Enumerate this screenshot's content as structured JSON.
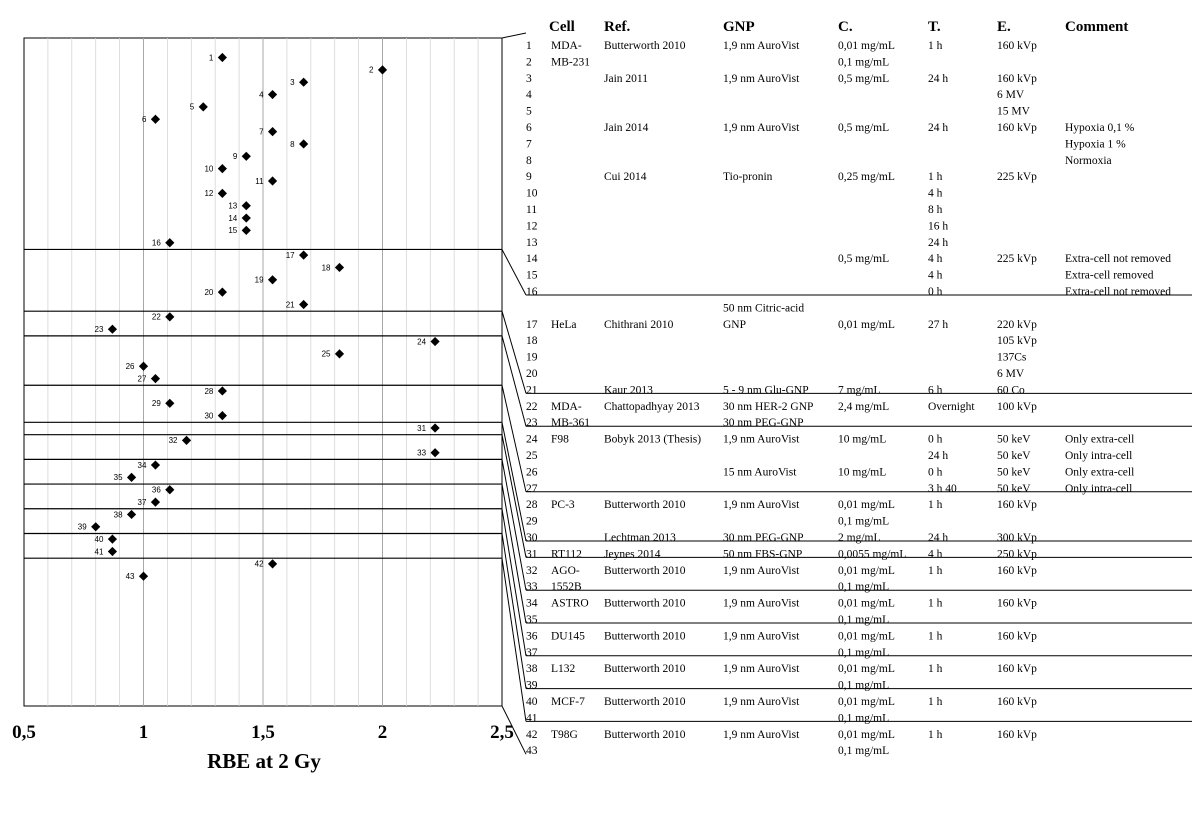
{
  "chart_data": {
    "type": "scatter",
    "xlabel": "RBE at 2 Gy",
    "xlim": [
      0.5,
      2.5
    ],
    "x_tick_labels": [
      "0,5",
      "1",
      "1,5",
      "2",
      "2,5"
    ],
    "marker": "diamond",
    "points": [
      {
        "id": "1",
        "x": 1.33
      },
      {
        "id": "2",
        "x": 2.0
      },
      {
        "id": "3",
        "x": 1.67
      },
      {
        "id": "4",
        "x": 1.54
      },
      {
        "id": "5",
        "x": 1.25
      },
      {
        "id": "6",
        "x": 1.05
      },
      {
        "id": "7",
        "x": 1.54
      },
      {
        "id": "8",
        "x": 1.67
      },
      {
        "id": "9",
        "x": 1.43
      },
      {
        "id": "10",
        "x": 1.33
      },
      {
        "id": "11",
        "x": 1.54
      },
      {
        "id": "12",
        "x": 1.33
      },
      {
        "id": "13",
        "x": 1.43
      },
      {
        "id": "14",
        "x": 1.43
      },
      {
        "id": "15",
        "x": 1.43
      },
      {
        "id": "16",
        "x": 1.11
      },
      {
        "id": "17",
        "x": 1.67
      },
      {
        "id": "18",
        "x": 1.82
      },
      {
        "id": "19",
        "x": 1.54
      },
      {
        "id": "20",
        "x": 1.33
      },
      {
        "id": "21",
        "x": 1.67
      },
      {
        "id": "22",
        "x": 1.11
      },
      {
        "id": "23",
        "x": 0.87
      },
      {
        "id": "24",
        "x": 2.22
      },
      {
        "id": "25",
        "x": 1.82
      },
      {
        "id": "26",
        "x": 1.0
      },
      {
        "id": "27",
        "x": 1.05
      },
      {
        "id": "28",
        "x": 1.33
      },
      {
        "id": "29",
        "x": 1.11
      },
      {
        "id": "30",
        "x": 1.33
      },
      {
        "id": "31",
        "x": 2.22
      },
      {
        "id": "32",
        "x": 1.18
      },
      {
        "id": "33",
        "x": 2.22
      },
      {
        "id": "34",
        "x": 1.05
      },
      {
        "id": "35",
        "x": 0.95
      },
      {
        "id": "36",
        "x": 1.11
      },
      {
        "id": "37",
        "x": 1.05
      },
      {
        "id": "38",
        "x": 0.95
      },
      {
        "id": "39",
        "x": 0.8
      },
      {
        "id": "40",
        "x": 0.87
      },
      {
        "id": "41",
        "x": 0.87
      },
      {
        "id": "42",
        "x": 1.54
      },
      {
        "id": "43",
        "x": 1.0
      }
    ],
    "groups": [
      {
        "first": 1,
        "last": 16
      },
      {
        "first": 17,
        "last": 21
      },
      {
        "first": 22,
        "last": 23
      },
      {
        "first": 24,
        "last": 27
      },
      {
        "first": 28,
        "last": 30
      },
      {
        "first": 31,
        "last": 31
      },
      {
        "first": 32,
        "last": 33
      },
      {
        "first": 34,
        "last": 35
      },
      {
        "first": 36,
        "last": 37
      },
      {
        "first": 38,
        "last": 39
      },
      {
        "first": 40,
        "last": 41
      },
      {
        "first": 42,
        "last": 43
      }
    ]
  },
  "table": {
    "columns": [
      "Cell",
      "Ref.",
      "GNP",
      "C.",
      "T.",
      "E.",
      "Comment"
    ],
    "rows": [
      [
        "1",
        "MDA-",
        "Butterworth 2010",
        "1,9 nm AuroVist",
        "0,01 mg/mL",
        "1 h",
        "160 kVp",
        ""
      ],
      [
        "2",
        "MB-231",
        "",
        "",
        "0,1 mg/mL",
        "",
        "",
        ""
      ],
      [
        "3",
        "",
        "Jain 2011",
        "1,9 nm AuroVist",
        "0,5 mg/mL",
        "24 h",
        "160 kVp",
        ""
      ],
      [
        "4",
        "",
        "",
        "",
        "",
        "",
        "6 MV",
        ""
      ],
      [
        "5",
        "",
        "",
        "",
        "",
        "",
        "15 MV",
        ""
      ],
      [
        "6",
        "",
        "Jain 2014",
        "1,9 nm AuroVist",
        "0,5 mg/mL",
        "24 h",
        "160 kVp",
        "Hypoxia 0,1 %"
      ],
      [
        "7",
        "",
        "",
        "",
        "",
        "",
        "",
        "Hypoxia 1 %"
      ],
      [
        "8",
        "",
        "",
        "",
        "",
        "",
        "",
        "Normoxia"
      ],
      [
        "9",
        "",
        "Cui 2014",
        "Tio-pronin",
        "0,25 mg/mL",
        "1 h",
        "225 kVp",
        ""
      ],
      [
        "10",
        "",
        "",
        "",
        "",
        "4 h",
        "",
        ""
      ],
      [
        "11",
        "",
        "",
        "",
        "",
        "8 h",
        "",
        ""
      ],
      [
        "12",
        "",
        "",
        "",
        "",
        "16 h",
        "",
        ""
      ],
      [
        "13",
        "",
        "",
        "",
        "",
        "24 h",
        "",
        ""
      ],
      [
        "14",
        "",
        "",
        "",
        "0,5 mg/mL",
        "4 h",
        "225 kVp",
        "Extra-cell not removed"
      ],
      [
        "15",
        "",
        "",
        "",
        "",
        "4 h",
        "",
        "Extra-cell removed"
      ],
      [
        "16",
        "",
        "",
        "",
        "",
        "0 h",
        "",
        "Extra-cell not removed"
      ],
      [
        "",
        "",
        "",
        "50 nm Citric-acid",
        "",
        "",
        "",
        ""
      ],
      [
        "17",
        "HeLa",
        "Chithrani 2010",
        "GNP",
        "0,01 mg/mL",
        "27 h",
        "220 kVp",
        ""
      ],
      [
        "18",
        "",
        "",
        "",
        "",
        "",
        "105 kVp",
        ""
      ],
      [
        "19",
        "",
        "",
        "",
        "",
        "",
        "137Cs",
        ""
      ],
      [
        "20",
        "",
        "",
        "",
        "",
        "",
        "6 MV",
        ""
      ],
      [
        "21",
        "",
        "Kaur 2013",
        "5 - 9 nm Glu-GNP",
        "7  mg/mL",
        "6 h",
        "60 Co",
        ""
      ],
      [
        "22",
        "MDA-",
        "Chattopadhyay 2013",
        "30 nm HER-2 GNP",
        "2,4 mg/mL",
        "Overnight",
        "100 kVp",
        ""
      ],
      [
        "23",
        " MB-361",
        "",
        "30 nm PEG-GNP",
        "",
        "",
        "",
        ""
      ],
      [
        "24",
        "F98",
        "Bobyk 2013 (Thesis)",
        "1,9 nm AuroVist",
        "10 mg/mL",
        "0 h",
        "50 keV",
        "Only extra-cell"
      ],
      [
        "25",
        "",
        "",
        "",
        "",
        "24 h",
        "50 keV",
        "Only intra-cell"
      ],
      [
        "26",
        "",
        "",
        "15 nm AuroVist",
        "10 mg/mL",
        "0 h",
        "50 keV",
        "Only extra-cell"
      ],
      [
        "27",
        "",
        "",
        "",
        "",
        "3 h 40",
        "50 keV",
        "Only intra-cell"
      ],
      [
        "28",
        "PC-3",
        "Butterworth 2010",
        "1,9 nm AuroVist",
        "0,01 mg/mL",
        "1 h",
        "160 kVp",
        ""
      ],
      [
        "29",
        "",
        "",
        "",
        "0,1 mg/mL",
        "",
        "",
        ""
      ],
      [
        "30",
        "",
        "Lechtman 2013",
        "30 nm PEG-GNP",
        "2 mg/mL",
        "24 h",
        "300 kVp",
        ""
      ],
      [
        "31",
        "RT112",
        "Jeynes 2014",
        "50 nm FBS-GNP",
        "0,0055 mg/mL",
        "4 h",
        "250 kVp",
        ""
      ],
      [
        "32",
        "AGO-",
        "Butterworth 2010",
        "1,9 nm AuroVist",
        "0,01 mg/mL",
        "1 h",
        "160 kVp",
        ""
      ],
      [
        "33",
        " 1552B",
        "",
        "",
        "0,1 mg/mL",
        "",
        "",
        ""
      ],
      [
        "34",
        "ASTRO",
        "Butterworth 2010",
        "1,9 nm AuroVist",
        "0,01 mg/mL",
        "1 h",
        "160 kVp",
        ""
      ],
      [
        "35",
        "",
        "",
        "",
        "0,1 mg/mL",
        "",
        "",
        ""
      ],
      [
        "36",
        "DU145",
        "Butterworth 2010",
        "1,9 nm AuroVist",
        "0,01 mg/mL",
        "1 h",
        "160 kVp",
        ""
      ],
      [
        "37",
        "",
        "",
        "",
        "0,1 mg/mL",
        "",
        "",
        ""
      ],
      [
        "38",
        "L132",
        "Butterworth 2010",
        "1,9 nm AuroVist",
        "0,01 mg/mL",
        "1 h",
        "160 kVp",
        ""
      ],
      [
        "39",
        "",
        "",
        "",
        "0,1 mg/mL",
        "",
        "",
        ""
      ],
      [
        "40",
        "MCF-7",
        "Butterworth 2010",
        "1,9 nm AuroVist",
        "0,01 mg/mL",
        "1 h",
        "160 kVp",
        ""
      ],
      [
        "41",
        "",
        "",
        "",
        "0,1 mg/mL",
        "",
        "",
        ""
      ],
      [
        "42",
        "T98G",
        "Butterworth 2010",
        "1,9 nm AuroVist",
        "0,01 mg/mL",
        "1 h",
        "160 kVp",
        ""
      ],
      [
        "43",
        "",
        "",
        "",
        "0,1 mg/mL",
        "",
        "",
        ""
      ]
    ]
  }
}
